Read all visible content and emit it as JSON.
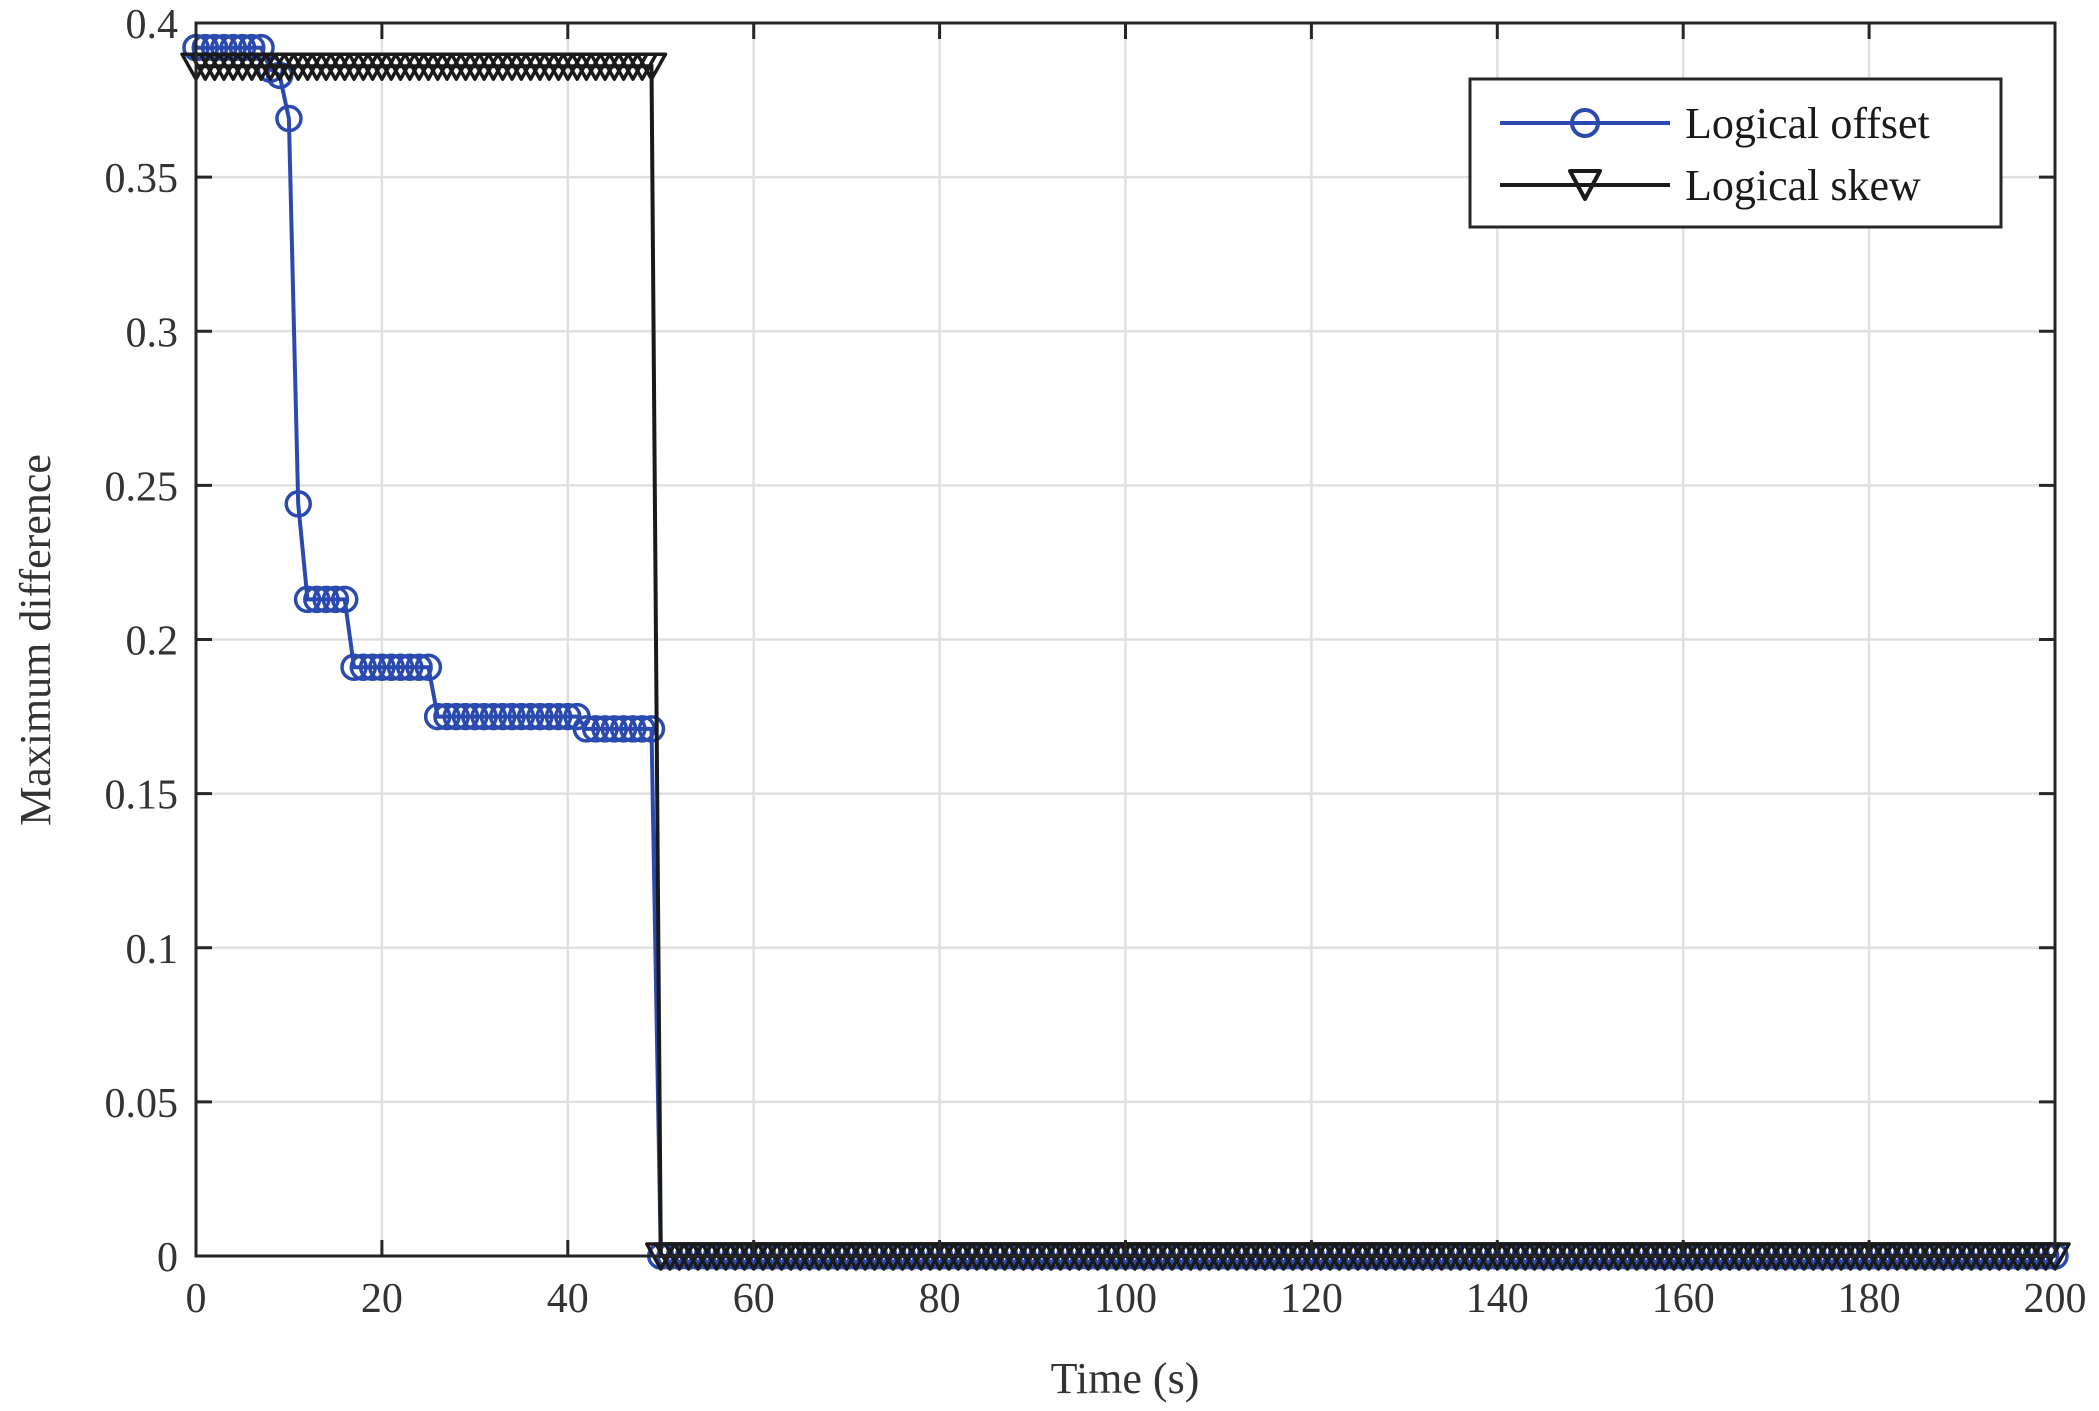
{
  "chart_data": {
    "type": "line",
    "title": "",
    "xlabel": "Time (s)",
    "ylabel": "Maximum difference",
    "xlim": [
      0,
      200
    ],
    "ylim": [
      0,
      0.4
    ],
    "xticks": [
      0,
      20,
      40,
      60,
      80,
      100,
      120,
      140,
      160,
      180,
      200
    ],
    "yticks": [
      0,
      0.05,
      0.1,
      0.15,
      0.2,
      0.25,
      0.3,
      0.35,
      0.4
    ],
    "xtick_labels": [
      "0",
      "20",
      "40",
      "60",
      "80",
      "100",
      "120",
      "140",
      "160",
      "180",
      "200"
    ],
    "ytick_labels": [
      "0",
      "0.05",
      "0.1",
      "0.15",
      "0.2",
      "0.25",
      "0.3",
      "0.35",
      "0.4"
    ],
    "grid": true,
    "legend_position": "top-right",
    "series": [
      {
        "name": "Logical offset",
        "color": "#2a4ab0",
        "marker": "circle",
        "x": [
          0,
          1,
          2,
          3,
          4,
          5,
          6,
          7,
          8,
          9,
          10,
          11,
          12,
          13,
          14,
          15,
          16,
          17,
          18,
          19,
          20,
          21,
          22,
          23,
          24,
          25,
          26,
          27,
          28,
          29,
          30,
          31,
          32,
          33,
          34,
          35,
          36,
          37,
          38,
          39,
          40,
          41,
          42,
          43,
          44,
          45,
          46,
          47,
          48,
          49,
          50,
          60,
          70,
          80,
          90,
          100,
          110,
          120,
          130,
          140,
          150,
          160,
          170,
          180,
          190,
          200
        ],
        "y": [
          0.392,
          0.392,
          0.392,
          0.392,
          0.392,
          0.392,
          0.392,
          0.392,
          0.385,
          0.383,
          0.369,
          0.244,
          0.213,
          0.213,
          0.213,
          0.213,
          0.213,
          0.191,
          0.191,
          0.191,
          0.191,
          0.191,
          0.191,
          0.191,
          0.191,
          0.191,
          0.175,
          0.175,
          0.175,
          0.175,
          0.175,
          0.175,
          0.175,
          0.175,
          0.175,
          0.175,
          0.175,
          0.175,
          0.175,
          0.175,
          0.175,
          0.175,
          0.171,
          0.171,
          0.171,
          0.171,
          0.171,
          0.171,
          0.171,
          0.171,
          0.0,
          0.0,
          0.0,
          0.0,
          0.0,
          0.0,
          0.0,
          0.0,
          0.0,
          0.0,
          0.0,
          0.0,
          0.0,
          0.0,
          0.0,
          0.0
        ]
      },
      {
        "name": "Logical skew",
        "color": "#1a1a1a",
        "marker": "triangle-down",
        "x": [
          0,
          1,
          2,
          3,
          4,
          5,
          6,
          7,
          8,
          9,
          10,
          11,
          12,
          13,
          14,
          15,
          16,
          17,
          18,
          19,
          20,
          21,
          22,
          23,
          24,
          25,
          26,
          27,
          28,
          29,
          30,
          31,
          32,
          33,
          34,
          35,
          36,
          37,
          38,
          39,
          40,
          41,
          42,
          43,
          44,
          45,
          46,
          47,
          48,
          49,
          50,
          60,
          70,
          80,
          90,
          100,
          110,
          120,
          130,
          140,
          150,
          160,
          170,
          180,
          190,
          200
        ],
        "y": [
          0.386,
          0.386,
          0.386,
          0.386,
          0.386,
          0.386,
          0.386,
          0.386,
          0.386,
          0.386,
          0.386,
          0.386,
          0.386,
          0.386,
          0.386,
          0.386,
          0.386,
          0.386,
          0.386,
          0.386,
          0.386,
          0.386,
          0.386,
          0.386,
          0.386,
          0.386,
          0.386,
          0.386,
          0.386,
          0.386,
          0.386,
          0.386,
          0.386,
          0.386,
          0.386,
          0.386,
          0.386,
          0.386,
          0.386,
          0.386,
          0.386,
          0.386,
          0.386,
          0.386,
          0.386,
          0.386,
          0.386,
          0.386,
          0.386,
          0.386,
          0.0,
          0.0,
          0.0,
          0.0,
          0.0,
          0.0,
          0.0,
          0.0,
          0.0,
          0.0,
          0.0,
          0.0,
          0.0,
          0.0,
          0.0,
          0.0
        ]
      }
    ]
  }
}
